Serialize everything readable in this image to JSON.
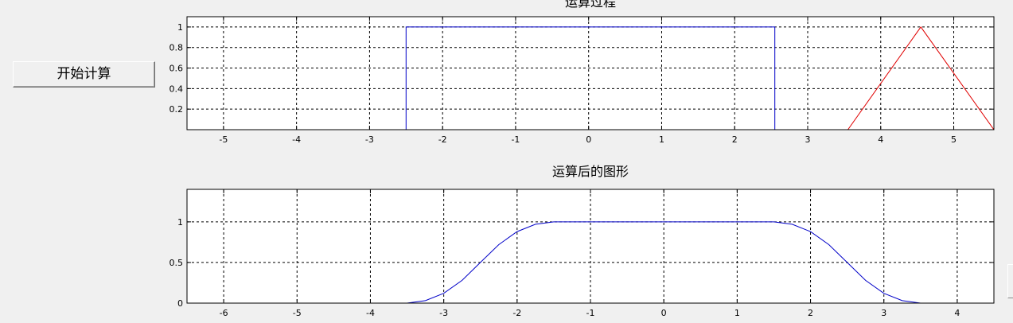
{
  "controls": {
    "start_button_label": "开始计算"
  },
  "chart_data": [
    {
      "type": "line",
      "title": "运算过程",
      "xlabel": "",
      "ylabel": "",
      "xlim": [
        -5.5,
        5.55
      ],
      "ylim": [
        0,
        1.1
      ],
      "grid": true,
      "xticks": [
        -5,
        -4,
        -3,
        -2,
        -1,
        0,
        1,
        2,
        3,
        4,
        5
      ],
      "yticks": [
        0.2,
        0.4,
        0.6,
        0.8,
        1
      ],
      "ytick_labels": [
        "0.2",
        "0.4",
        "0.6",
        "0.8",
        "1"
      ],
      "series": [
        {
          "color": "#0000c8",
          "x": [
            -2.5,
            -2.5,
            2.55,
            2.55
          ],
          "y": [
            0,
            1,
            1,
            0
          ]
        },
        {
          "color": "#e00000",
          "x": [
            3.55,
            4.55,
            5.55
          ],
          "y": [
            0,
            1,
            0
          ]
        }
      ]
    },
    {
      "type": "line",
      "title": "运算后的图形",
      "xlabel": "",
      "ylabel": "",
      "xlim": [
        -6.5,
        4.5
      ],
      "ylim": [
        0,
        1.4
      ],
      "grid": true,
      "xticks": [
        -6,
        -5,
        -4,
        -3,
        -2,
        -1,
        0,
        1,
        2,
        3,
        4
      ],
      "yticks": [
        0,
        0.5,
        1
      ],
      "ytick_labels": [
        "0",
        "0.5",
        "1"
      ],
      "series": [
        {
          "color": "#0000c8",
          "x": [
            -6.5,
            -3.5,
            -3.25,
            -3.0,
            -2.75,
            -2.5,
            -2.25,
            -2.0,
            -1.75,
            -1.5,
            1.5,
            1.75,
            2.0,
            2.25,
            2.5,
            2.75,
            3.0,
            3.25,
            3.5,
            4.5
          ],
          "y": [
            0,
            0,
            0.03,
            0.12,
            0.28,
            0.5,
            0.72,
            0.88,
            0.97,
            1,
            1,
            0.97,
            0.88,
            0.72,
            0.5,
            0.28,
            0.12,
            0.03,
            0,
            0
          ]
        }
      ]
    }
  ]
}
